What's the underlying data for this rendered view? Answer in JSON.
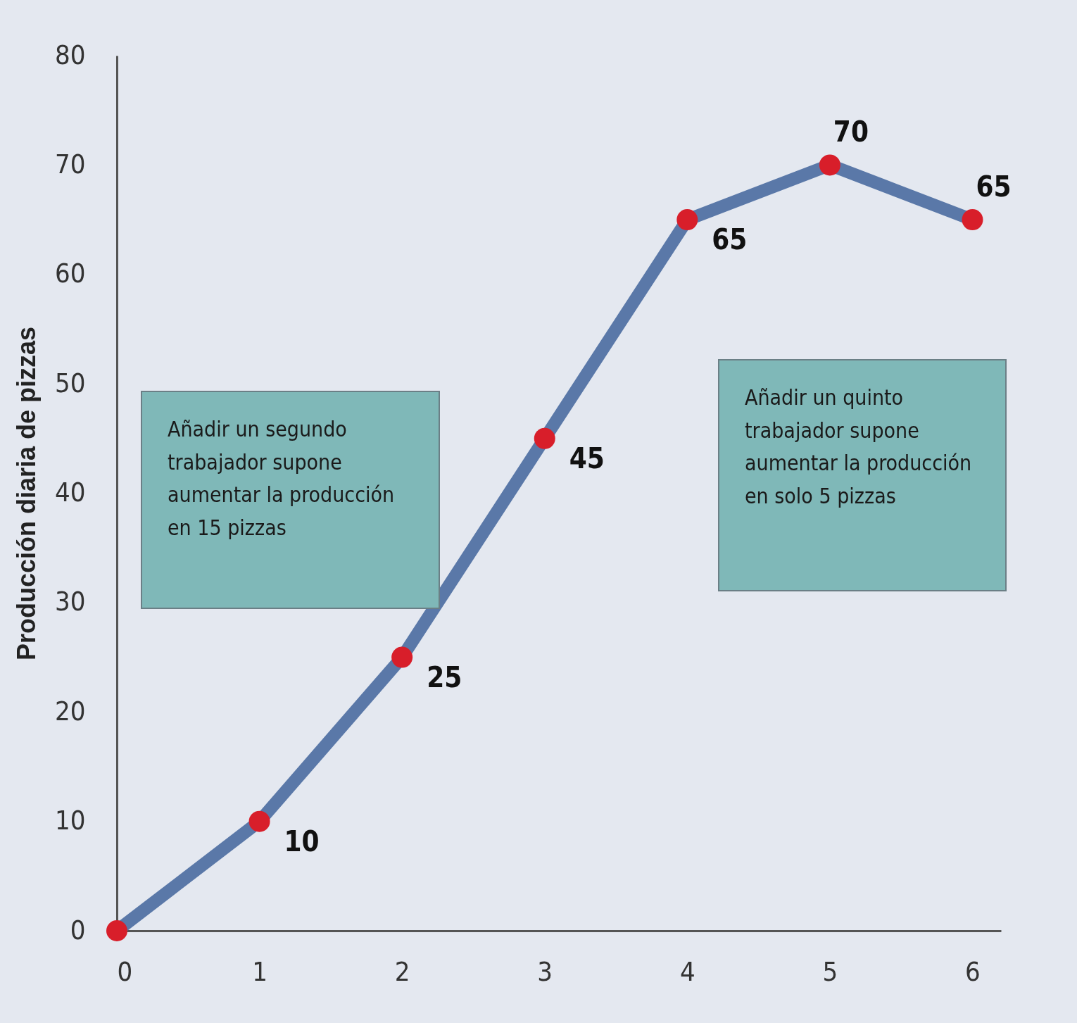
{
  "chart_data": {
    "type": "line",
    "ylabel": "Producción diaria de pizzas",
    "x": [
      0,
      1,
      2,
      3,
      4,
      5,
      6
    ],
    "series": [
      {
        "color": "#5a78a8",
        "values": [
          0,
          10,
          25,
          45,
          65,
          70,
          65
        ],
        "value_labels": [
          null,
          "10",
          "25",
          "45",
          "65",
          "70",
          "65"
        ]
      }
    ],
    "xlim": [
      0,
      6.2
    ],
    "xticks": [
      0,
      1,
      2,
      3,
      4,
      5,
      6
    ],
    "ylim": [
      0,
      80
    ],
    "yticks": [
      0,
      10,
      20,
      30,
      40,
      50,
      60,
      70,
      80
    ],
    "marker": "circle",
    "grid": false,
    "annotations": [
      "Añadir un segundo trabajador supone aumentar la producción en 15 pizzas",
      "Añadir un quinto trabajador supone aumentar la producción en solo 5 pizzas"
    ]
  }
}
